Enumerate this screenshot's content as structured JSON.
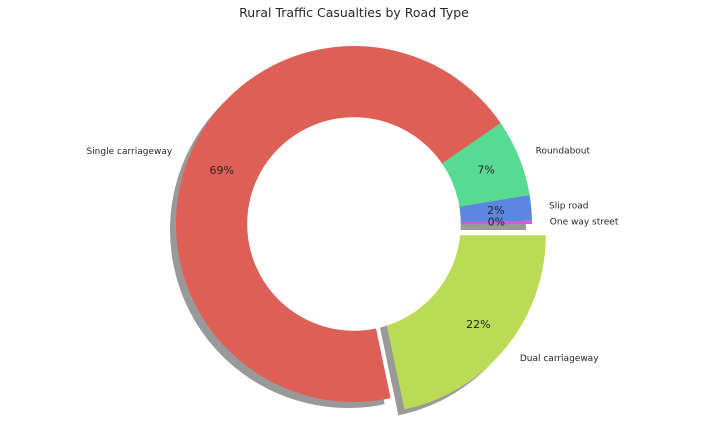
{
  "chart_data": {
    "type": "pie",
    "style": "donut",
    "title": "Rural Traffic Casualties by Road Type",
    "start_angle_deg": 0,
    "direction": "counterclockwise",
    "shadow": true,
    "slices": [
      {
        "label": "One way street",
        "value": 0.3,
        "pct_label": "0%",
        "color": "#d65ad1",
        "explode": 0
      },
      {
        "label": "Slip road",
        "value": 2.3,
        "pct_label": "2%",
        "color": "#5b87e0",
        "explode": 0
      },
      {
        "label": "Roundabout",
        "value": 7.0,
        "pct_label": "7%",
        "color": "#57db93",
        "explode": 0
      },
      {
        "label": "Single carriageway",
        "value": 68.7,
        "pct_label": "69%",
        "color": "#de5f56",
        "explode": 0
      },
      {
        "label": "Dual carriageway",
        "value": 21.7,
        "pct_label": "22%",
        "color": "#bbdb57",
        "explode": 0.1
      }
    ]
  }
}
